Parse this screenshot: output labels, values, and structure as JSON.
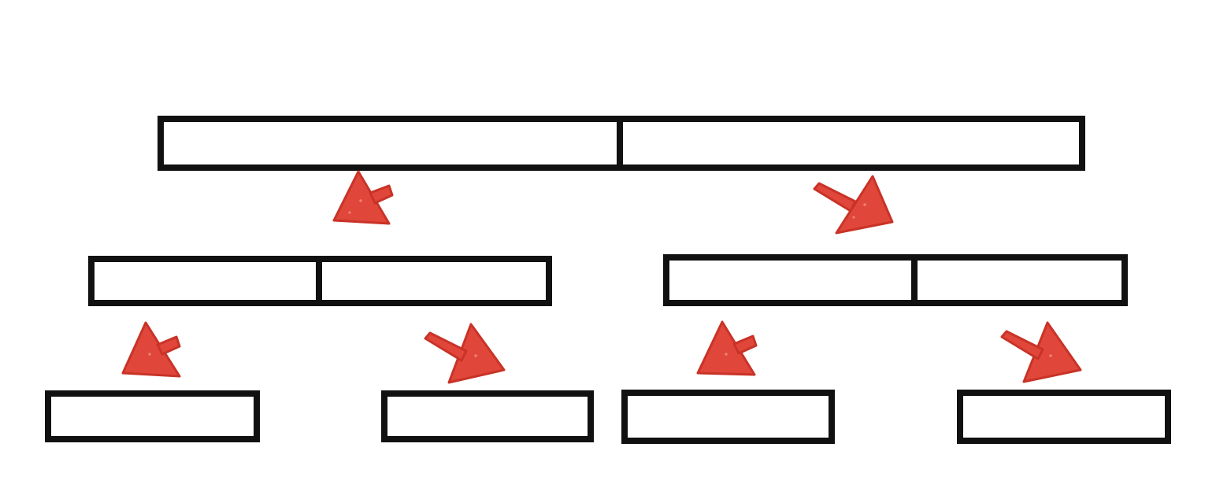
{
  "diagram": {
    "type": "merge-tree",
    "levels": [
      {
        "level": "root",
        "arrays": [
          {
            "id": "root",
            "cells": 2
          }
        ]
      },
      {
        "level": "middle",
        "arrays": [
          {
            "id": "left",
            "cells": 2
          },
          {
            "id": "right",
            "cells": 2
          }
        ]
      },
      {
        "level": "leaves",
        "arrays": [
          {
            "id": "leaf-1",
            "cells": 1
          },
          {
            "id": "leaf-2",
            "cells": 1
          },
          {
            "id": "leaf-3",
            "cells": 1
          },
          {
            "id": "leaf-4",
            "cells": 1
          }
        ]
      }
    ],
    "arrows": [
      {
        "from": "left",
        "to": "root",
        "direction": "up-right"
      },
      {
        "from": "root",
        "to": "right",
        "direction": "down-right"
      },
      {
        "from": "leaf-1",
        "to": "left",
        "direction": "up-right"
      },
      {
        "from": "left",
        "to": "leaf-2",
        "direction": "down-right"
      },
      {
        "from": "leaf-3",
        "to": "right",
        "direction": "up-right"
      },
      {
        "from": "right",
        "to": "leaf-4",
        "direction": "down-right"
      }
    ],
    "colors": {
      "outline": "#111111",
      "fill": "#ffffff",
      "arrow": "#e0473a",
      "arrow_dark": "#c93327",
      "background": "#ffffff"
    }
  }
}
